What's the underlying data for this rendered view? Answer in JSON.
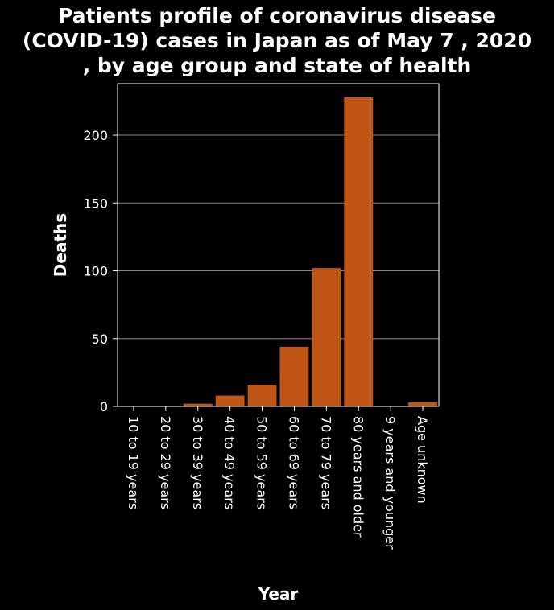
{
  "chart_data": {
    "type": "bar",
    "title_lines": [
      "Patients profile of coronavirus disease",
      "(COVID-19) cases in Japan as of May 7 , 2020",
      ", by age group and state of health"
    ],
    "xlabel": "Year",
    "ylabel": "Deaths",
    "categories": [
      "10 to 19 years",
      "20 to 29 years",
      "30 to 39 years",
      "40 to 49 years",
      "50 to 59 years",
      "60 to 69 years",
      "70 to 79 years",
      "80 years and older",
      "9 years and younger",
      "Age unknown"
    ],
    "values": [
      0,
      0,
      2,
      8,
      16,
      44,
      102,
      228,
      0,
      3
    ],
    "ylim": [
      0,
      238
    ],
    "yticks": [
      0,
      50,
      100,
      150,
      200
    ],
    "grid": true,
    "colors": {
      "bar": "#c05616",
      "background": "#000000",
      "grid": "#888888",
      "text": "#ffffff"
    }
  }
}
